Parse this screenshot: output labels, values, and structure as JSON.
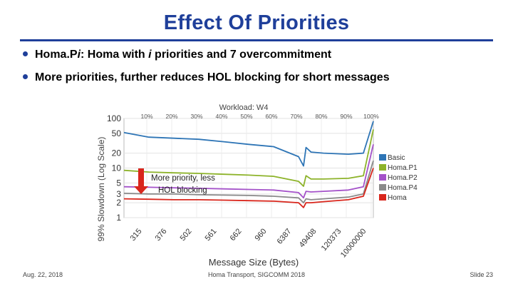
{
  "slide": {
    "title": "Effect Of Priorities",
    "bullets": [
      {
        "pre": "Homa.P",
        "ital1": "i",
        "mid": ": Homa with ",
        "ital2": "i",
        "post": " priorities and 7 overcommitment"
      },
      {
        "text": "More priorities, further reduces HOL blocking for short messages"
      }
    ],
    "footer_left": "Aug. 22, 2018",
    "footer_center": "Homa Transport, SIGCOMM 2018",
    "footer_right": "Slide 23",
    "annotation": {
      "line1": "More priority, less",
      "line2": "HOL blocking"
    }
  },
  "chart_data": {
    "type": "line",
    "title": "Workload: W4",
    "xlabel": "Message Size (Bytes)",
    "ylabel": "99% Slowdown (Log Scale)",
    "y_scale": "log",
    "ylim": [
      1,
      100
    ],
    "ytick_labels": [
      "100",
      "50",
      "20",
      "10",
      "5",
      "3",
      "2",
      "1"
    ],
    "ytick_values": [
      100,
      50,
      20,
      10,
      5,
      3,
      2,
      1
    ],
    "top_percent_labels": [
      "10%",
      "20%",
      "30%",
      "40%",
      "50%",
      "60%",
      "70%",
      "80%",
      "90%",
      "100%"
    ],
    "x_size_labels": [
      "315",
      "376",
      "502",
      "561",
      "662",
      "960",
      "6387",
      "49408",
      "120373",
      "10000000"
    ],
    "x_fraction": [
      0,
      0.1,
      0.2,
      0.3,
      0.4,
      0.5,
      0.6,
      0.7,
      0.72,
      0.73,
      0.75,
      0.8,
      0.9,
      0.96,
      1.0
    ],
    "series": [
      {
        "name": "Basic",
        "color": "#2e75b6",
        "values": [
          52,
          42,
          40,
          38,
          34,
          30,
          27,
          17,
          11,
          26,
          21,
          20,
          19,
          20,
          88
        ]
      },
      {
        "name": "Homa.P1",
        "color": "#8db32a",
        "values": [
          9,
          8.3,
          8,
          7.8,
          7.5,
          7.2,
          6.8,
          5.4,
          4.3,
          7,
          6,
          6,
          6.2,
          7,
          60
        ]
      },
      {
        "name": "Homa.P2",
        "color": "#a452c9",
        "values": [
          4.2,
          4.1,
          4.0,
          3.9,
          3.8,
          3.7,
          3.6,
          3.2,
          2.5,
          3.4,
          3.3,
          3.4,
          3.6,
          4.2,
          30
        ]
      },
      {
        "name": "Homa.P4",
        "color": "#8a8a8a",
        "values": [
          3.1,
          3.0,
          3.0,
          2.9,
          2.85,
          2.8,
          2.7,
          2.5,
          2.0,
          2.4,
          2.3,
          2.4,
          2.6,
          3.0,
          14
        ]
      },
      {
        "name": "Homa",
        "color": "#d9261c",
        "values": [
          2.4,
          2.35,
          2.3,
          2.3,
          2.25,
          2.2,
          2.15,
          2.0,
          1.6,
          2.0,
          2.0,
          2.1,
          2.3,
          2.7,
          10
        ]
      }
    ]
  }
}
